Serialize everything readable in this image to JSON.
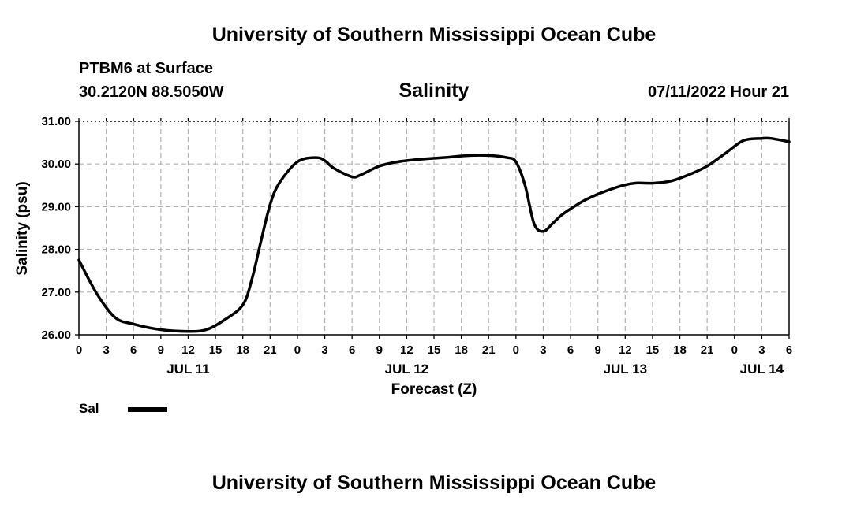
{
  "header": {
    "main_title": "University of Southern Mississippi Ocean Cube",
    "station": "PTBM6 at Surface",
    "coords": "30.2120N  88.5050W",
    "run_time": "07/11/2022 Hour 21"
  },
  "footer": {
    "title": "University of Southern Mississippi Ocean Cube"
  },
  "legend": {
    "label": "Sal",
    "color": "#000000"
  },
  "chart_data": {
    "type": "line",
    "title": "Salinity",
    "xlabel": "Forecast (Z)",
    "ylabel": "Salinity (psu)",
    "ylim": [
      26.0,
      31.0
    ],
    "xlim": [
      0,
      78
    ],
    "x_units": "hours from 07/11/2022 00Z",
    "grid": true,
    "y_ticks": [
      {
        "value": 26.0,
        "label": "26.00"
      },
      {
        "value": 27.0,
        "label": "27.00"
      },
      {
        "value": 28.0,
        "label": "28.00"
      },
      {
        "value": 29.0,
        "label": "29.00"
      },
      {
        "value": 30.0,
        "label": "30.00"
      },
      {
        "value": 31.0,
        "label": "31.00"
      }
    ],
    "x_ticks": [
      {
        "value": 0,
        "label": "0"
      },
      {
        "value": 3,
        "label": "3"
      },
      {
        "value": 6,
        "label": "6"
      },
      {
        "value": 9,
        "label": "9"
      },
      {
        "value": 12,
        "label": "12"
      },
      {
        "value": 15,
        "label": "15"
      },
      {
        "value": 18,
        "label": "18"
      },
      {
        "value": 21,
        "label": "21"
      },
      {
        "value": 24,
        "label": "0"
      },
      {
        "value": 27,
        "label": "3"
      },
      {
        "value": 30,
        "label": "6"
      },
      {
        "value": 33,
        "label": "9"
      },
      {
        "value": 36,
        "label": "12"
      },
      {
        "value": 39,
        "label": "15"
      },
      {
        "value": 42,
        "label": "18"
      },
      {
        "value": 45,
        "label": "21"
      },
      {
        "value": 48,
        "label": "0"
      },
      {
        "value": 51,
        "label": "3"
      },
      {
        "value": 54,
        "label": "6"
      },
      {
        "value": 57,
        "label": "9"
      },
      {
        "value": 60,
        "label": "12"
      },
      {
        "value": 63,
        "label": "15"
      },
      {
        "value": 66,
        "label": "18"
      },
      {
        "value": 69,
        "label": "21"
      },
      {
        "value": 72,
        "label": "0"
      },
      {
        "value": 75,
        "label": "3"
      },
      {
        "value": 78,
        "label": "6"
      }
    ],
    "date_labels": [
      {
        "value": 12,
        "label": "JUL 11"
      },
      {
        "value": 36,
        "label": "JUL 12"
      },
      {
        "value": 60,
        "label": "JUL 13"
      },
      {
        "value": 75,
        "label": "JUL 14"
      }
    ],
    "series": [
      {
        "name": "Sal",
        "x": [
          0,
          2,
          4,
          6,
          9,
          12,
          14,
          16,
          18,
          19,
          20,
          21,
          22,
          24,
          26,
          27,
          28,
          30,
          31,
          33,
          35,
          37,
          40,
          43,
          45,
          47,
          48,
          49,
          50,
          51,
          52,
          53,
          54,
          56,
          59,
          61,
          63,
          65,
          67,
          69,
          71,
          73,
          75,
          76,
          78
        ],
        "values": [
          27.75,
          26.95,
          26.4,
          26.25,
          26.12,
          26.08,
          26.12,
          26.35,
          26.7,
          27.3,
          28.2,
          29.05,
          29.55,
          30.05,
          30.15,
          30.08,
          29.9,
          29.7,
          29.75,
          29.95,
          30.05,
          30.1,
          30.15,
          30.2,
          30.2,
          30.15,
          30.05,
          29.5,
          28.6,
          28.42,
          28.6,
          28.8,
          28.95,
          29.2,
          29.45,
          29.55,
          29.55,
          29.6,
          29.75,
          29.95,
          30.25,
          30.55,
          30.6,
          30.6,
          30.52
        ]
      }
    ]
  }
}
